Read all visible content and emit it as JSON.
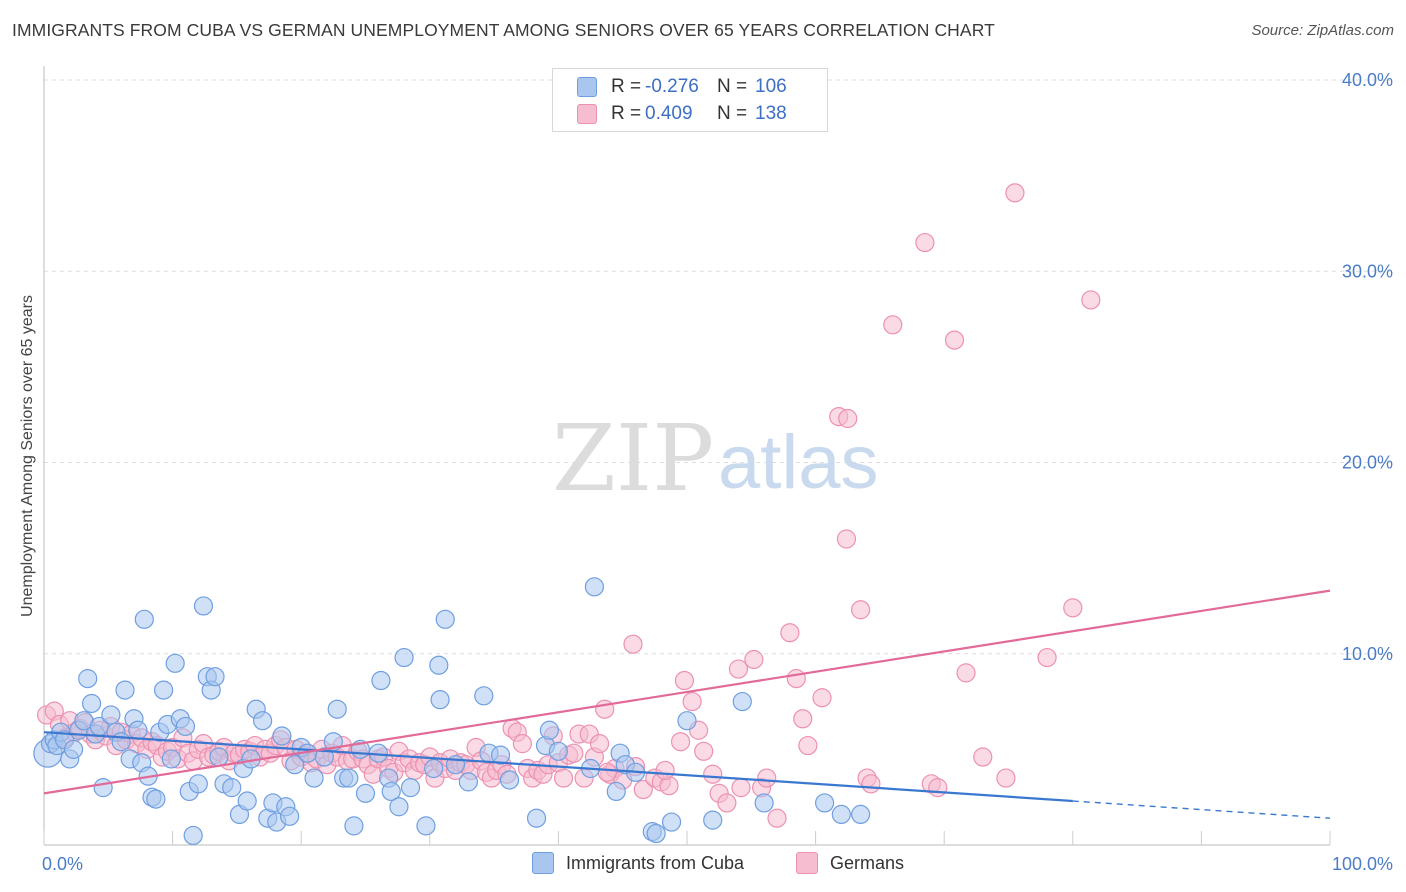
{
  "title": "IMMIGRANTS FROM CUBA VS GERMAN UNEMPLOYMENT AMONG SENIORS OVER 65 YEARS CORRELATION CHART",
  "source": "Source: ZipAtlas.com",
  "watermark": {
    "zip": "ZIP",
    "atlas": "atlas"
  },
  "colors": {
    "blue_fill": "#a9c6ef",
    "blue_stroke": "#6f9fe0",
    "blue_line": "#3a78d0",
    "pink_fill": "#f6bcd0",
    "pink_stroke": "#ec91b1",
    "pink_line": "#e26a98",
    "grid": "#dddddd",
    "tick_text": "#4a7cc7"
  },
  "legend": {
    "rows": [
      {
        "r_label": "R =",
        "r_value": "-0.276",
        "n_label": "N =",
        "n_value": "106",
        "color": "#a9c6ef"
      },
      {
        "r_label": "R =",
        "r_value": "0.409",
        "n_label": "N =",
        "n_value": "138",
        "color": "#f6bcd0"
      }
    ]
  },
  "bottom_legend": [
    {
      "label": "Immigrants from Cuba",
      "color": "#a9c6ef"
    },
    {
      "label": "Germans",
      "color": "#f6bcd0"
    }
  ],
  "chart_data": {
    "type": "scatter",
    "title": "IMMIGRANTS FROM CUBA VS GERMAN UNEMPLOYMENT AMONG SENIORS OVER 65 YEARS CORRELATION CHART",
    "xlabel": "",
    "ylabel": "Unemployment Among Seniors over 65 years",
    "xlim": [
      0,
      100
    ],
    "ylim": [
      0,
      40
    ],
    "x_tick_labels": [
      "0.0%",
      "100.0%"
    ],
    "y_ticks": [
      10,
      20,
      30,
      40
    ],
    "y_tick_labels": [
      "10.0%",
      "20.0%",
      "30.0%",
      "40.0%"
    ],
    "grid": true,
    "legend_placement": "top-center",
    "series": [
      {
        "name": "Immigrants from Cuba",
        "r": -0.276,
        "n": 106,
        "trend": {
          "x": [
            0,
            80,
            100
          ],
          "y": [
            5.9,
            2.3,
            1.4
          ],
          "solid_until": 80
        },
        "points": [
          [
            0.3,
            4.8
          ],
          [
            0.5,
            5.3
          ],
          [
            0.8,
            5.5
          ],
          [
            1.0,
            5.2
          ],
          [
            1.3,
            5.9
          ],
          [
            1.6,
            5.5
          ],
          [
            2.0,
            4.5
          ],
          [
            2.3,
            5.0
          ],
          [
            2.7,
            6.0
          ],
          [
            3.1,
            6.5
          ],
          [
            3.4,
            8.7
          ],
          [
            3.7,
            7.4
          ],
          [
            4.0,
            5.8
          ],
          [
            4.3,
            6.2
          ],
          [
            4.6,
            3.0
          ],
          [
            5.2,
            6.8
          ],
          [
            5.6,
            5.9
          ],
          [
            6.0,
            5.4
          ],
          [
            6.3,
            8.1
          ],
          [
            6.7,
            4.5
          ],
          [
            7.0,
            6.6
          ],
          [
            7.3,
            6.0
          ],
          [
            7.6,
            4.3
          ],
          [
            7.8,
            11.8
          ],
          [
            8.1,
            3.6
          ],
          [
            8.4,
            2.5
          ],
          [
            8.7,
            2.4
          ],
          [
            9.0,
            5.9
          ],
          [
            9.3,
            8.1
          ],
          [
            9.6,
            6.3
          ],
          [
            9.9,
            4.5
          ],
          [
            10.2,
            9.5
          ],
          [
            10.6,
            6.6
          ],
          [
            11.0,
            6.2
          ],
          [
            11.3,
            2.8
          ],
          [
            11.6,
            0.5
          ],
          [
            12.0,
            3.2
          ],
          [
            12.4,
            12.5
          ],
          [
            12.7,
            8.8
          ],
          [
            13.0,
            8.1
          ],
          [
            13.3,
            8.8
          ],
          [
            13.6,
            4.6
          ],
          [
            14.0,
            3.2
          ],
          [
            14.6,
            3.0
          ],
          [
            15.2,
            1.6
          ],
          [
            15.5,
            4.0
          ],
          [
            15.8,
            2.3
          ],
          [
            16.1,
            4.5
          ],
          [
            16.5,
            7.1
          ],
          [
            17.0,
            6.5
          ],
          [
            17.4,
            1.4
          ],
          [
            17.8,
            2.2
          ],
          [
            18.1,
            1.2
          ],
          [
            18.5,
            5.7
          ],
          [
            18.8,
            2.0
          ],
          [
            19.1,
            1.5
          ],
          [
            19.5,
            4.2
          ],
          [
            20.0,
            5.1
          ],
          [
            20.5,
            4.8
          ],
          [
            21.0,
            3.5
          ],
          [
            21.8,
            4.6
          ],
          [
            22.5,
            5.4
          ],
          [
            22.8,
            7.1
          ],
          [
            23.3,
            3.5
          ],
          [
            23.7,
            3.5
          ],
          [
            24.1,
            1.0
          ],
          [
            24.6,
            5.0
          ],
          [
            25.0,
            2.7
          ],
          [
            26.0,
            4.8
          ],
          [
            26.2,
            8.6
          ],
          [
            26.8,
            3.5
          ],
          [
            27.0,
            2.8
          ],
          [
            27.6,
            2.0
          ],
          [
            28.0,
            9.8
          ],
          [
            28.5,
            3.0
          ],
          [
            29.7,
            1.0
          ],
          [
            30.3,
            4.0
          ],
          [
            30.7,
            9.4
          ],
          [
            30.8,
            7.6
          ],
          [
            31.2,
            11.8
          ],
          [
            32.0,
            4.2
          ],
          [
            33.0,
            3.3
          ],
          [
            34.2,
            7.8
          ],
          [
            34.6,
            4.8
          ],
          [
            35.5,
            4.7
          ],
          [
            36.2,
            3.4
          ],
          [
            38.3,
            1.4
          ],
          [
            39.0,
            5.2
          ],
          [
            39.3,
            6.0
          ],
          [
            40.0,
            4.9
          ],
          [
            42.5,
            4.0
          ],
          [
            42.8,
            13.5
          ],
          [
            44.5,
            2.8
          ],
          [
            44.8,
            4.8
          ],
          [
            45.2,
            4.2
          ],
          [
            46.0,
            3.8
          ],
          [
            47.3,
            0.7
          ],
          [
            47.6,
            0.6
          ],
          [
            48.8,
            1.2
          ],
          [
            50.0,
            6.5
          ],
          [
            52.0,
            1.3
          ],
          [
            54.3,
            7.5
          ],
          [
            56.0,
            2.2
          ],
          [
            60.7,
            2.2
          ],
          [
            62.0,
            1.6
          ],
          [
            63.5,
            1.6
          ]
        ]
      },
      {
        "name": "Germans",
        "r": 0.409,
        "n": 138,
        "trend": {
          "x": [
            0,
            100
          ],
          "y": [
            2.7,
            13.3
          ]
        },
        "points": [
          [
            0.2,
            6.8
          ],
          [
            0.8,
            7.0
          ],
          [
            1.2,
            6.3
          ],
          [
            1.6,
            5.6
          ],
          [
            2.0,
            6.5
          ],
          [
            2.4,
            5.9
          ],
          [
            2.8,
            6.1
          ],
          [
            3.2,
            6.4
          ],
          [
            3.6,
            5.8
          ],
          [
            4.0,
            5.5
          ],
          [
            4.4,
            6.0
          ],
          [
            4.8,
            5.7
          ],
          [
            5.2,
            6.2
          ],
          [
            5.6,
            5.2
          ],
          [
            6.0,
            5.9
          ],
          [
            6.4,
            5.5
          ],
          [
            6.8,
            5.8
          ],
          [
            7.2,
            5.3
          ],
          [
            7.6,
            5.6
          ],
          [
            8.0,
            5.0
          ],
          [
            8.4,
            5.4
          ],
          [
            8.8,
            5.2
          ],
          [
            9.2,
            4.6
          ],
          [
            9.6,
            4.9
          ],
          [
            10.0,
            5.1
          ],
          [
            10.4,
            4.5
          ],
          [
            10.8,
            5.6
          ],
          [
            11.2,
            4.8
          ],
          [
            11.6,
            4.4
          ],
          [
            12.0,
            5.0
          ],
          [
            12.4,
            5.3
          ],
          [
            12.8,
            4.6
          ],
          [
            13.2,
            4.7
          ],
          [
            13.6,
            4.9
          ],
          [
            14.0,
            5.1
          ],
          [
            14.4,
            4.4
          ],
          [
            14.8,
            4.8
          ],
          [
            15.2,
            4.7
          ],
          [
            15.6,
            5.0
          ],
          [
            16.0,
            4.9
          ],
          [
            16.4,
            5.2
          ],
          [
            16.8,
            4.6
          ],
          [
            17.2,
            5.0
          ],
          [
            17.6,
            4.8
          ],
          [
            18.0,
            5.2
          ],
          [
            18.4,
            5.5
          ],
          [
            18.8,
            5.1
          ],
          [
            19.2,
            4.4
          ],
          [
            19.6,
            5.0
          ],
          [
            20.0,
            4.6
          ],
          [
            20.4,
            4.8
          ],
          [
            20.8,
            4.3
          ],
          [
            21.2,
            4.5
          ],
          [
            21.6,
            5.0
          ],
          [
            22.0,
            4.2
          ],
          [
            22.4,
            4.8
          ],
          [
            22.8,
            4.6
          ],
          [
            23.2,
            5.2
          ],
          [
            23.6,
            4.4
          ],
          [
            24.0,
            4.5
          ],
          [
            24.4,
            4.9
          ],
          [
            24.8,
            4.5
          ],
          [
            25.2,
            4.2
          ],
          [
            25.6,
            3.7
          ],
          [
            26.0,
            4.5
          ],
          [
            26.4,
            4.6
          ],
          [
            26.8,
            4.0
          ],
          [
            27.2,
            3.8
          ],
          [
            27.6,
            4.9
          ],
          [
            28.0,
            4.3
          ],
          [
            28.4,
            4.5
          ],
          [
            28.8,
            3.9
          ],
          [
            29.2,
            4.3
          ],
          [
            29.6,
            4.2
          ],
          [
            30.0,
            4.6
          ],
          [
            30.4,
            3.5
          ],
          [
            30.8,
            4.3
          ],
          [
            31.2,
            4.0
          ],
          [
            31.6,
            4.5
          ],
          [
            32.0,
            3.9
          ],
          [
            32.4,
            4.3
          ],
          [
            32.8,
            4.2
          ],
          [
            33.2,
            3.9
          ],
          [
            33.6,
            5.1
          ],
          [
            34.0,
            4.4
          ],
          [
            34.4,
            3.8
          ],
          [
            34.8,
            3.5
          ],
          [
            35.2,
            3.9
          ],
          [
            35.6,
            4.2
          ],
          [
            36.0,
            3.7
          ],
          [
            36.4,
            6.1
          ],
          [
            36.8,
            5.9
          ],
          [
            37.2,
            5.3
          ],
          [
            37.6,
            4.0
          ],
          [
            38.0,
            3.5
          ],
          [
            38.4,
            3.9
          ],
          [
            38.8,
            3.7
          ],
          [
            39.2,
            4.2
          ],
          [
            39.6,
            5.7
          ],
          [
            40.0,
            4.3
          ],
          [
            40.4,
            3.5
          ],
          [
            40.8,
            4.7
          ],
          [
            41.2,
            4.8
          ],
          [
            41.6,
            5.8
          ],
          [
            42.0,
            3.5
          ],
          [
            42.4,
            5.8
          ],
          [
            42.8,
            4.6
          ],
          [
            43.2,
            5.3
          ],
          [
            43.6,
            7.1
          ],
          [
            44.0,
            3.7
          ],
          [
            44.4,
            4.0
          ],
          [
            45.0,
            3.4
          ],
          [
            46.0,
            4.1
          ],
          [
            46.6,
            2.9
          ],
          [
            47.5,
            3.5
          ],
          [
            48.0,
            3.3
          ],
          [
            48.6,
            3.1
          ],
          [
            49.5,
            5.4
          ],
          [
            49.8,
            8.6
          ],
          [
            50.4,
            7.5
          ],
          [
            50.9,
            6.0
          ],
          [
            51.3,
            4.9
          ],
          [
            52.0,
            3.7
          ],
          [
            52.5,
            2.7
          ],
          [
            53.1,
            2.2
          ],
          [
            54.0,
            9.2
          ],
          [
            54.2,
            3.0
          ],
          [
            55.2,
            9.7
          ],
          [
            55.8,
            3.0
          ],
          [
            56.2,
            3.5
          ],
          [
            58.0,
            11.1
          ],
          [
            58.5,
            8.7
          ],
          [
            59.0,
            6.6
          ],
          [
            59.4,
            5.2
          ],
          [
            60.5,
            7.7
          ],
          [
            61.8,
            22.4
          ],
          [
            62.4,
            16.0
          ],
          [
            63.5,
            12.3
          ],
          [
            64.0,
            3.5
          ],
          [
            64.3,
            3.2
          ]
        ],
        "extra_points": [
          [
            57.0,
            1.4
          ],
          [
            66.0,
            27.2
          ],
          [
            68.5,
            31.5
          ],
          [
            69.0,
            3.2
          ],
          [
            69.5,
            3.0
          ],
          [
            70.8,
            26.4
          ],
          [
            71.7,
            9.0
          ],
          [
            73.0,
            4.6
          ],
          [
            74.8,
            3.5
          ],
          [
            75.5,
            34.1
          ],
          [
            78.0,
            9.8
          ],
          [
            80.0,
            12.4
          ],
          [
            81.4,
            28.5
          ],
          [
            62.5,
            22.3
          ],
          [
            45.8,
            10.5
          ],
          [
            43.8,
            3.8
          ],
          [
            48.3,
            3.9
          ]
        ]
      }
    ]
  }
}
